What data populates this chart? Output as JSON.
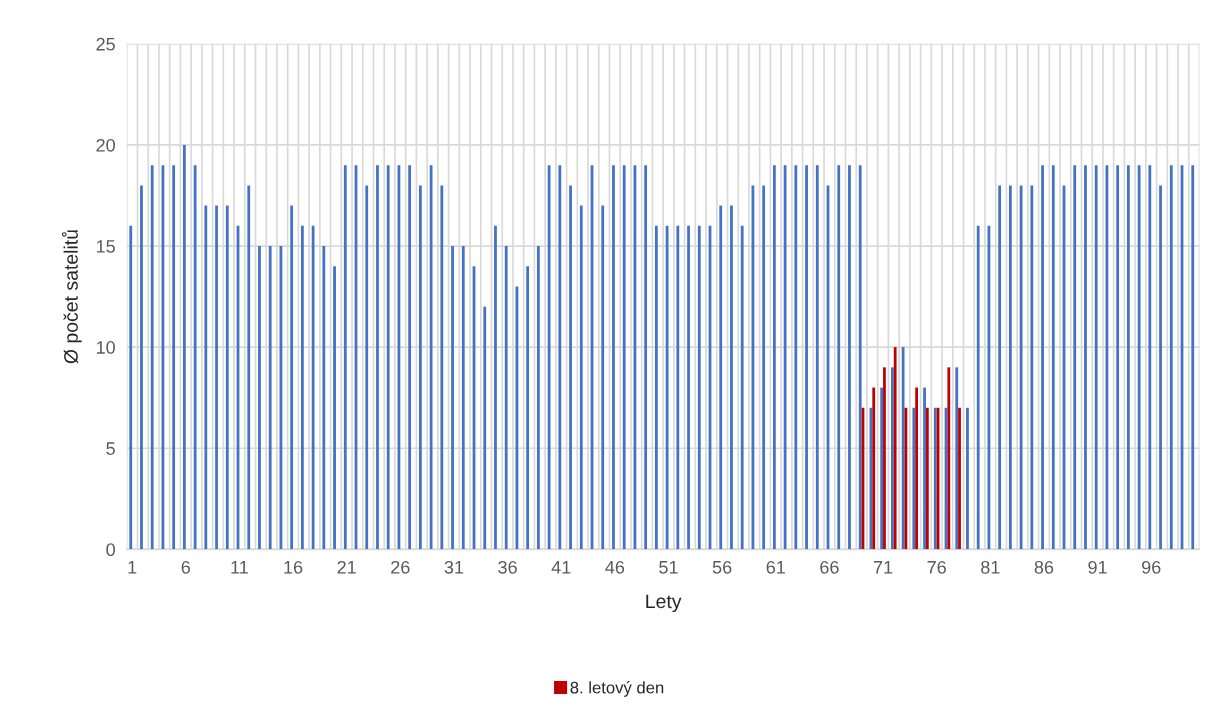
{
  "chart_data": {
    "type": "bar",
    "xlabel": "Lety",
    "ylabel": "Ø počet satelitů",
    "categories": [
      "1",
      null,
      null,
      null,
      null,
      "6",
      null,
      null,
      null,
      null,
      "11",
      null,
      null,
      null,
      null,
      "16",
      null,
      null,
      null,
      null,
      "21",
      null,
      null,
      null,
      null,
      "26",
      null,
      null,
      null,
      null,
      "31",
      null,
      null,
      null,
      null,
      "36",
      null,
      null,
      null,
      null,
      "41",
      null,
      null,
      null,
      null,
      "46",
      null,
      null,
      null,
      null,
      "51",
      null,
      null,
      null,
      null,
      "56",
      null,
      null,
      null,
      null,
      "61",
      null,
      null,
      null,
      null,
      "66",
      null,
      null,
      null,
      null,
      "71",
      null,
      null,
      null,
      null,
      "76",
      null,
      null,
      null,
      null,
      "81",
      null,
      null,
      null,
      null,
      "86",
      null,
      null,
      null,
      null,
      "91",
      null,
      null,
      null,
      null,
      "96",
      null,
      null,
      null,
      null
    ],
    "series": [
      {
        "color": "#4472c4",
        "values": [
          16,
          18,
          19,
          19,
          19,
          20,
          19,
          17,
          17,
          17,
          16,
          18,
          15,
          15,
          15,
          17,
          16,
          16,
          15,
          14,
          19,
          19,
          18,
          19,
          19,
          19,
          19,
          18,
          19,
          18,
          15,
          15,
          14,
          12,
          16,
          15,
          13,
          14,
          15,
          19,
          19,
          18,
          17,
          19,
          17,
          19,
          19,
          19,
          19,
          16,
          16,
          16,
          16,
          16,
          16,
          17,
          17,
          16,
          18,
          18,
          19,
          19,
          19,
          19,
          19,
          18,
          19,
          19,
          19,
          7,
          8,
          9,
          10,
          7,
          8,
          7,
          7,
          9,
          7,
          16,
          16,
          18,
          18,
          18,
          18,
          19,
          19,
          18,
          19,
          19,
          19,
          19,
          19,
          19,
          19,
          19,
          18,
          19,
          19,
          19
        ]
      },
      {
        "name": "8. letový den",
        "color": "#c00000",
        "values": [
          null,
          null,
          null,
          null,
          null,
          null,
          null,
          null,
          null,
          null,
          null,
          null,
          null,
          null,
          null,
          null,
          null,
          null,
          null,
          null,
          null,
          null,
          null,
          null,
          null,
          null,
          null,
          null,
          null,
          null,
          null,
          null,
          null,
          null,
          null,
          null,
          null,
          null,
          null,
          null,
          null,
          null,
          null,
          null,
          null,
          null,
          null,
          null,
          null,
          null,
          null,
          null,
          null,
          null,
          null,
          null,
          null,
          null,
          null,
          null,
          null,
          null,
          null,
          null,
          null,
          null,
          null,
          null,
          7,
          8,
          9,
          10,
          7,
          8,
          7,
          7,
          9,
          7,
          null,
          null,
          null,
          null,
          null,
          null,
          null,
          null,
          null,
          null,
          null,
          null,
          null,
          null,
          null,
          null,
          null,
          null,
          null,
          null,
          null,
          null
        ]
      }
    ],
    "ylim": [
      0,
      25
    ],
    "yticks": [
      0,
      5,
      10,
      15,
      20,
      25
    ],
    "grid": true,
    "legend": "bottom"
  }
}
